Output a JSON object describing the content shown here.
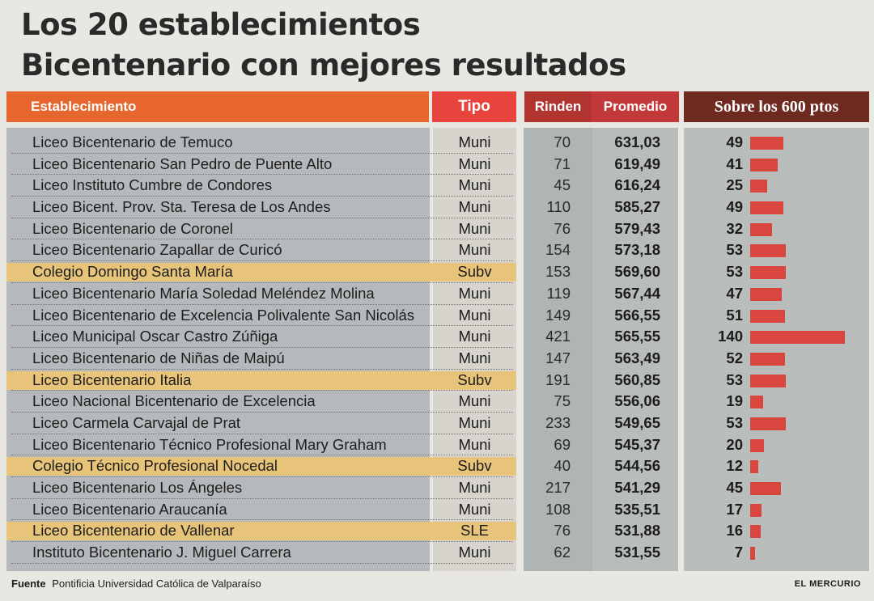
{
  "title_line1": "Los 20 establecimientos",
  "title_line2": "Bicentenario con mejores resultados",
  "headers": {
    "establecimiento": "Establecimiento",
    "tipo": "Tipo",
    "rinden": "Rinden",
    "promedio": "Promedio",
    "sobre": "Sobre los 600 ptos"
  },
  "colors": {
    "bar": "#d9453f",
    "subv_highlight": "#e7c479"
  },
  "chart_data": {
    "type": "table",
    "title": "Los 20 establecimientos Bicentenario con mejores resultados",
    "columns": [
      "Establecimiento",
      "Tipo",
      "Rinden",
      "Promedio",
      "Sobre los 600 ptos"
    ],
    "rows": [
      {
        "name": "Liceo Bicentenario de Temuco",
        "tipo": "Muni",
        "rinden": "70",
        "promedio": "631,03",
        "sobre": 49
      },
      {
        "name": "Liceo Bicentenario San Pedro de Puente Alto",
        "tipo": "Muni",
        "rinden": "71",
        "promedio": "619,49",
        "sobre": 41
      },
      {
        "name": "Liceo Instituto Cumbre de Condores",
        "tipo": "Muni",
        "rinden": "45",
        "promedio": "616,24",
        "sobre": 25
      },
      {
        "name": "Liceo Bicent. Prov. Sta. Teresa de Los Andes",
        "tipo": "Muni",
        "rinden": "110",
        "promedio": "585,27",
        "sobre": 49
      },
      {
        "name": "Liceo Bicentenario de Coronel",
        "tipo": "Muni",
        "rinden": "76",
        "promedio": "579,43",
        "sobre": 32
      },
      {
        "name": "Liceo Bicentenario Zapallar de Curicó",
        "tipo": "Muni",
        "rinden": "154",
        "promedio": "573,18",
        "sobre": 53
      },
      {
        "name": "Colegio Domingo Santa María",
        "tipo": "Subv",
        "rinden": "153",
        "promedio": "569,60",
        "sobre": 53
      },
      {
        "name": "Liceo Bicentenario María Soledad Meléndez Molina",
        "tipo": "Muni",
        "rinden": "119",
        "promedio": "567,44",
        "sobre": 47
      },
      {
        "name": "Liceo Bicentenario de Excelencia Polivalente San Nicolás",
        "tipo": "Muni",
        "rinden": "149",
        "promedio": "566,55",
        "sobre": 51
      },
      {
        "name": "Liceo Municipal Oscar Castro Zúñiga",
        "tipo": "Muni",
        "rinden": "421",
        "promedio": "565,55",
        "sobre": 140
      },
      {
        "name": "Liceo Bicentenario de Niñas de Maipú",
        "tipo": "Muni",
        "rinden": "147",
        "promedio": "563,49",
        "sobre": 52
      },
      {
        "name": "Liceo Bicentenario Italia",
        "tipo": "Subv",
        "rinden": "191",
        "promedio": "560,85",
        "sobre": 53
      },
      {
        "name": "Liceo Nacional Bicentenario de Excelencia",
        "tipo": "Muni",
        "rinden": "75",
        "promedio": "556,06",
        "sobre": 19
      },
      {
        "name": "Liceo Carmela Carvajal de Prat",
        "tipo": "Muni",
        "rinden": "233",
        "promedio": "549,65",
        "sobre": 53
      },
      {
        "name": "Liceo Bicentenario Técnico Profesional Mary Graham",
        "tipo": "Muni",
        "rinden": "69",
        "promedio": "545,37",
        "sobre": 20
      },
      {
        "name": "Colegio Técnico Profesional Nocedal",
        "tipo": "Subv",
        "rinden": "40",
        "promedio": "544,56",
        "sobre": 12
      },
      {
        "name": "Liceo Bicentenario Los Ángeles",
        "tipo": "Muni",
        "rinden": "217",
        "promedio": "541,29",
        "sobre": 45
      },
      {
        "name": "Liceo Bicentenario Araucanía",
        "tipo": "Muni",
        "rinden": "108",
        "promedio": "535,51",
        "sobre": 17
      },
      {
        "name": "Liceo Bicentenario de Vallenar",
        "tipo": "SLE",
        "rinden": "76",
        "promedio": "531,88",
        "sobre": 16
      },
      {
        "name": "Instituto Bicentenario J. Miguel Carrera",
        "tipo": "Muni",
        "rinden": "62",
        "promedio": "531,55",
        "sobre": 7
      }
    ]
  },
  "source_label": "Fuente",
  "source_text": "Pontificia Universidad Católica de Valparaíso",
  "brand": "EL MERCURIO"
}
